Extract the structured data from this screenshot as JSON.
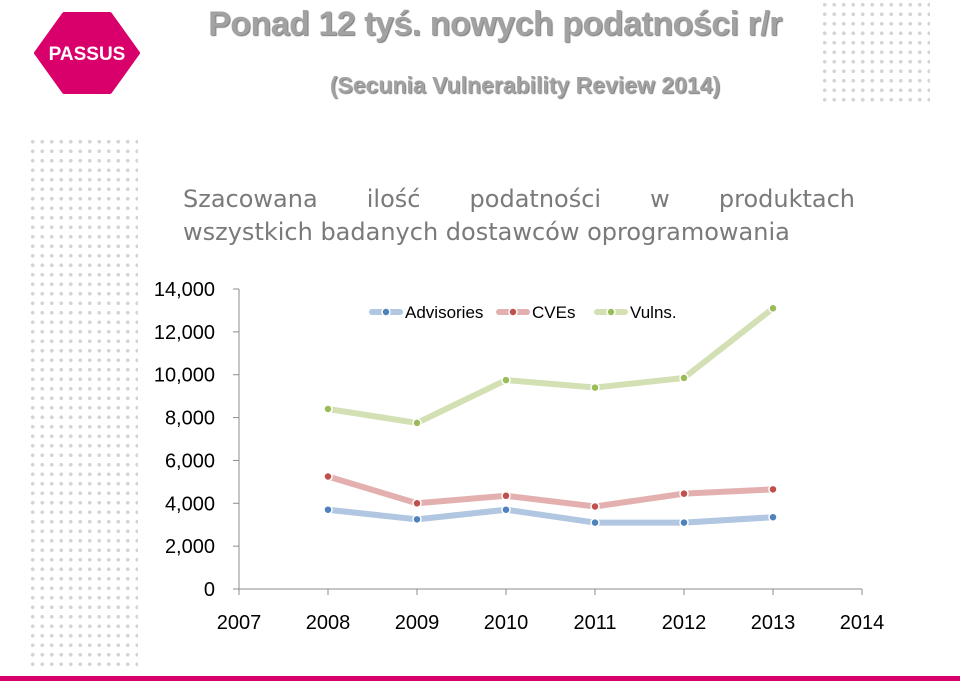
{
  "header": {
    "logo_text": "PASSUS",
    "title": "Ponad 12 tyś. nowych podatności r/r",
    "subtitle": "(Secunia Vulnerability Review 2014)"
  },
  "description": {
    "line1_words": [
      "Szacowana",
      "ilość",
      "podatności",
      "w",
      "produktach"
    ],
    "line2": "wszystkich badanych dostawców oprogramowania"
  },
  "colors": {
    "brand": "#d9006c",
    "advisories": "#4f81bd",
    "cves": "#c0504d",
    "vulns": "#9bbb59"
  },
  "chart_data": {
    "type": "line",
    "x": [
      2008,
      2009,
      2010,
      2011,
      2012,
      2013
    ],
    "xlim": [
      2007,
      2014
    ],
    "ylim": [
      0,
      14000
    ],
    "x_ticks": [
      "2007",
      "2008",
      "2009",
      "2010",
      "2011",
      "2012",
      "2013",
      "2014"
    ],
    "y_ticks": [
      "0",
      "2,000",
      "4,000",
      "6,000",
      "8,000",
      "10,000",
      "12,000",
      "14,000"
    ],
    "legend_position": "top",
    "series": [
      {
        "name": "Advisories",
        "values": [
          3700,
          3250,
          3700,
          3100,
          3100,
          3350
        ]
      },
      {
        "name": "CVEs",
        "values": [
          5250,
          4000,
          4350,
          3850,
          4450,
          4650
        ]
      },
      {
        "name": "Vulns.",
        "values": [
          8400,
          7750,
          9750,
          9400,
          9850,
          13100
        ]
      }
    ]
  }
}
